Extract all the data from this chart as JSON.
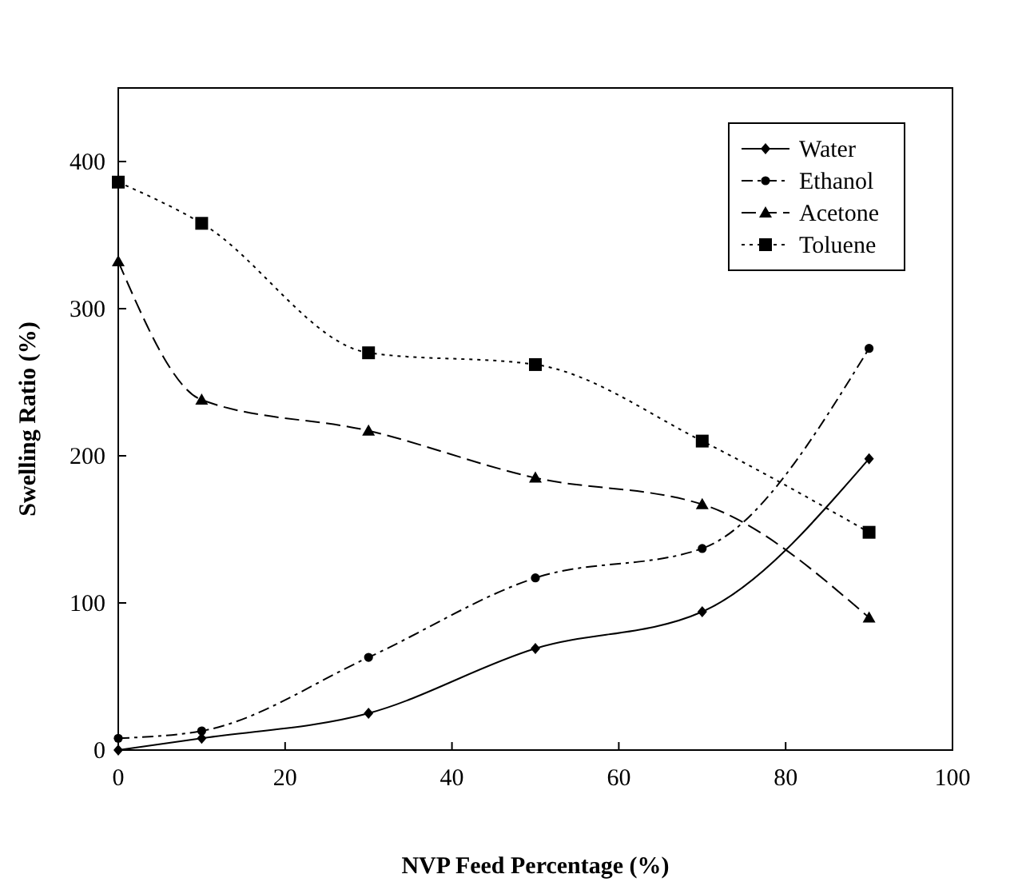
{
  "chart_data": {
    "type": "line",
    "xlabel": "NVP Feed Percentage (%)",
    "ylabel": "Swelling Ratio (%)",
    "x": [
      0,
      10,
      30,
      50,
      70,
      90
    ],
    "xlim": [
      0,
      100
    ],
    "xticks": [
      0,
      20,
      40,
      60,
      80,
      100
    ],
    "ylim": [
      0,
      450
    ],
    "yticks": [
      0,
      100,
      200,
      300,
      400
    ],
    "grid": false,
    "legend": "top right",
    "series": [
      {
        "name": "Water",
        "color": "#000000",
        "marker": "diamond",
        "line_style": "solid",
        "values": [
          0,
          8,
          25,
          69,
          94,
          198
        ]
      },
      {
        "name": "Ethanol",
        "color": "#000000",
        "marker": "circle",
        "line_style": "dashdot",
        "values": [
          8,
          13,
          63,
          117,
          137,
          273
        ]
      },
      {
        "name": "Acetone",
        "color": "#000000",
        "marker": "triangle",
        "line_style": "dashed",
        "values": [
          332,
          238,
          217,
          185,
          167,
          90
        ]
      },
      {
        "name": "Toluene",
        "color": "#000000",
        "marker": "square",
        "line_style": "dotted",
        "values": [
          386,
          358,
          270,
          262,
          210,
          148
        ]
      }
    ]
  }
}
